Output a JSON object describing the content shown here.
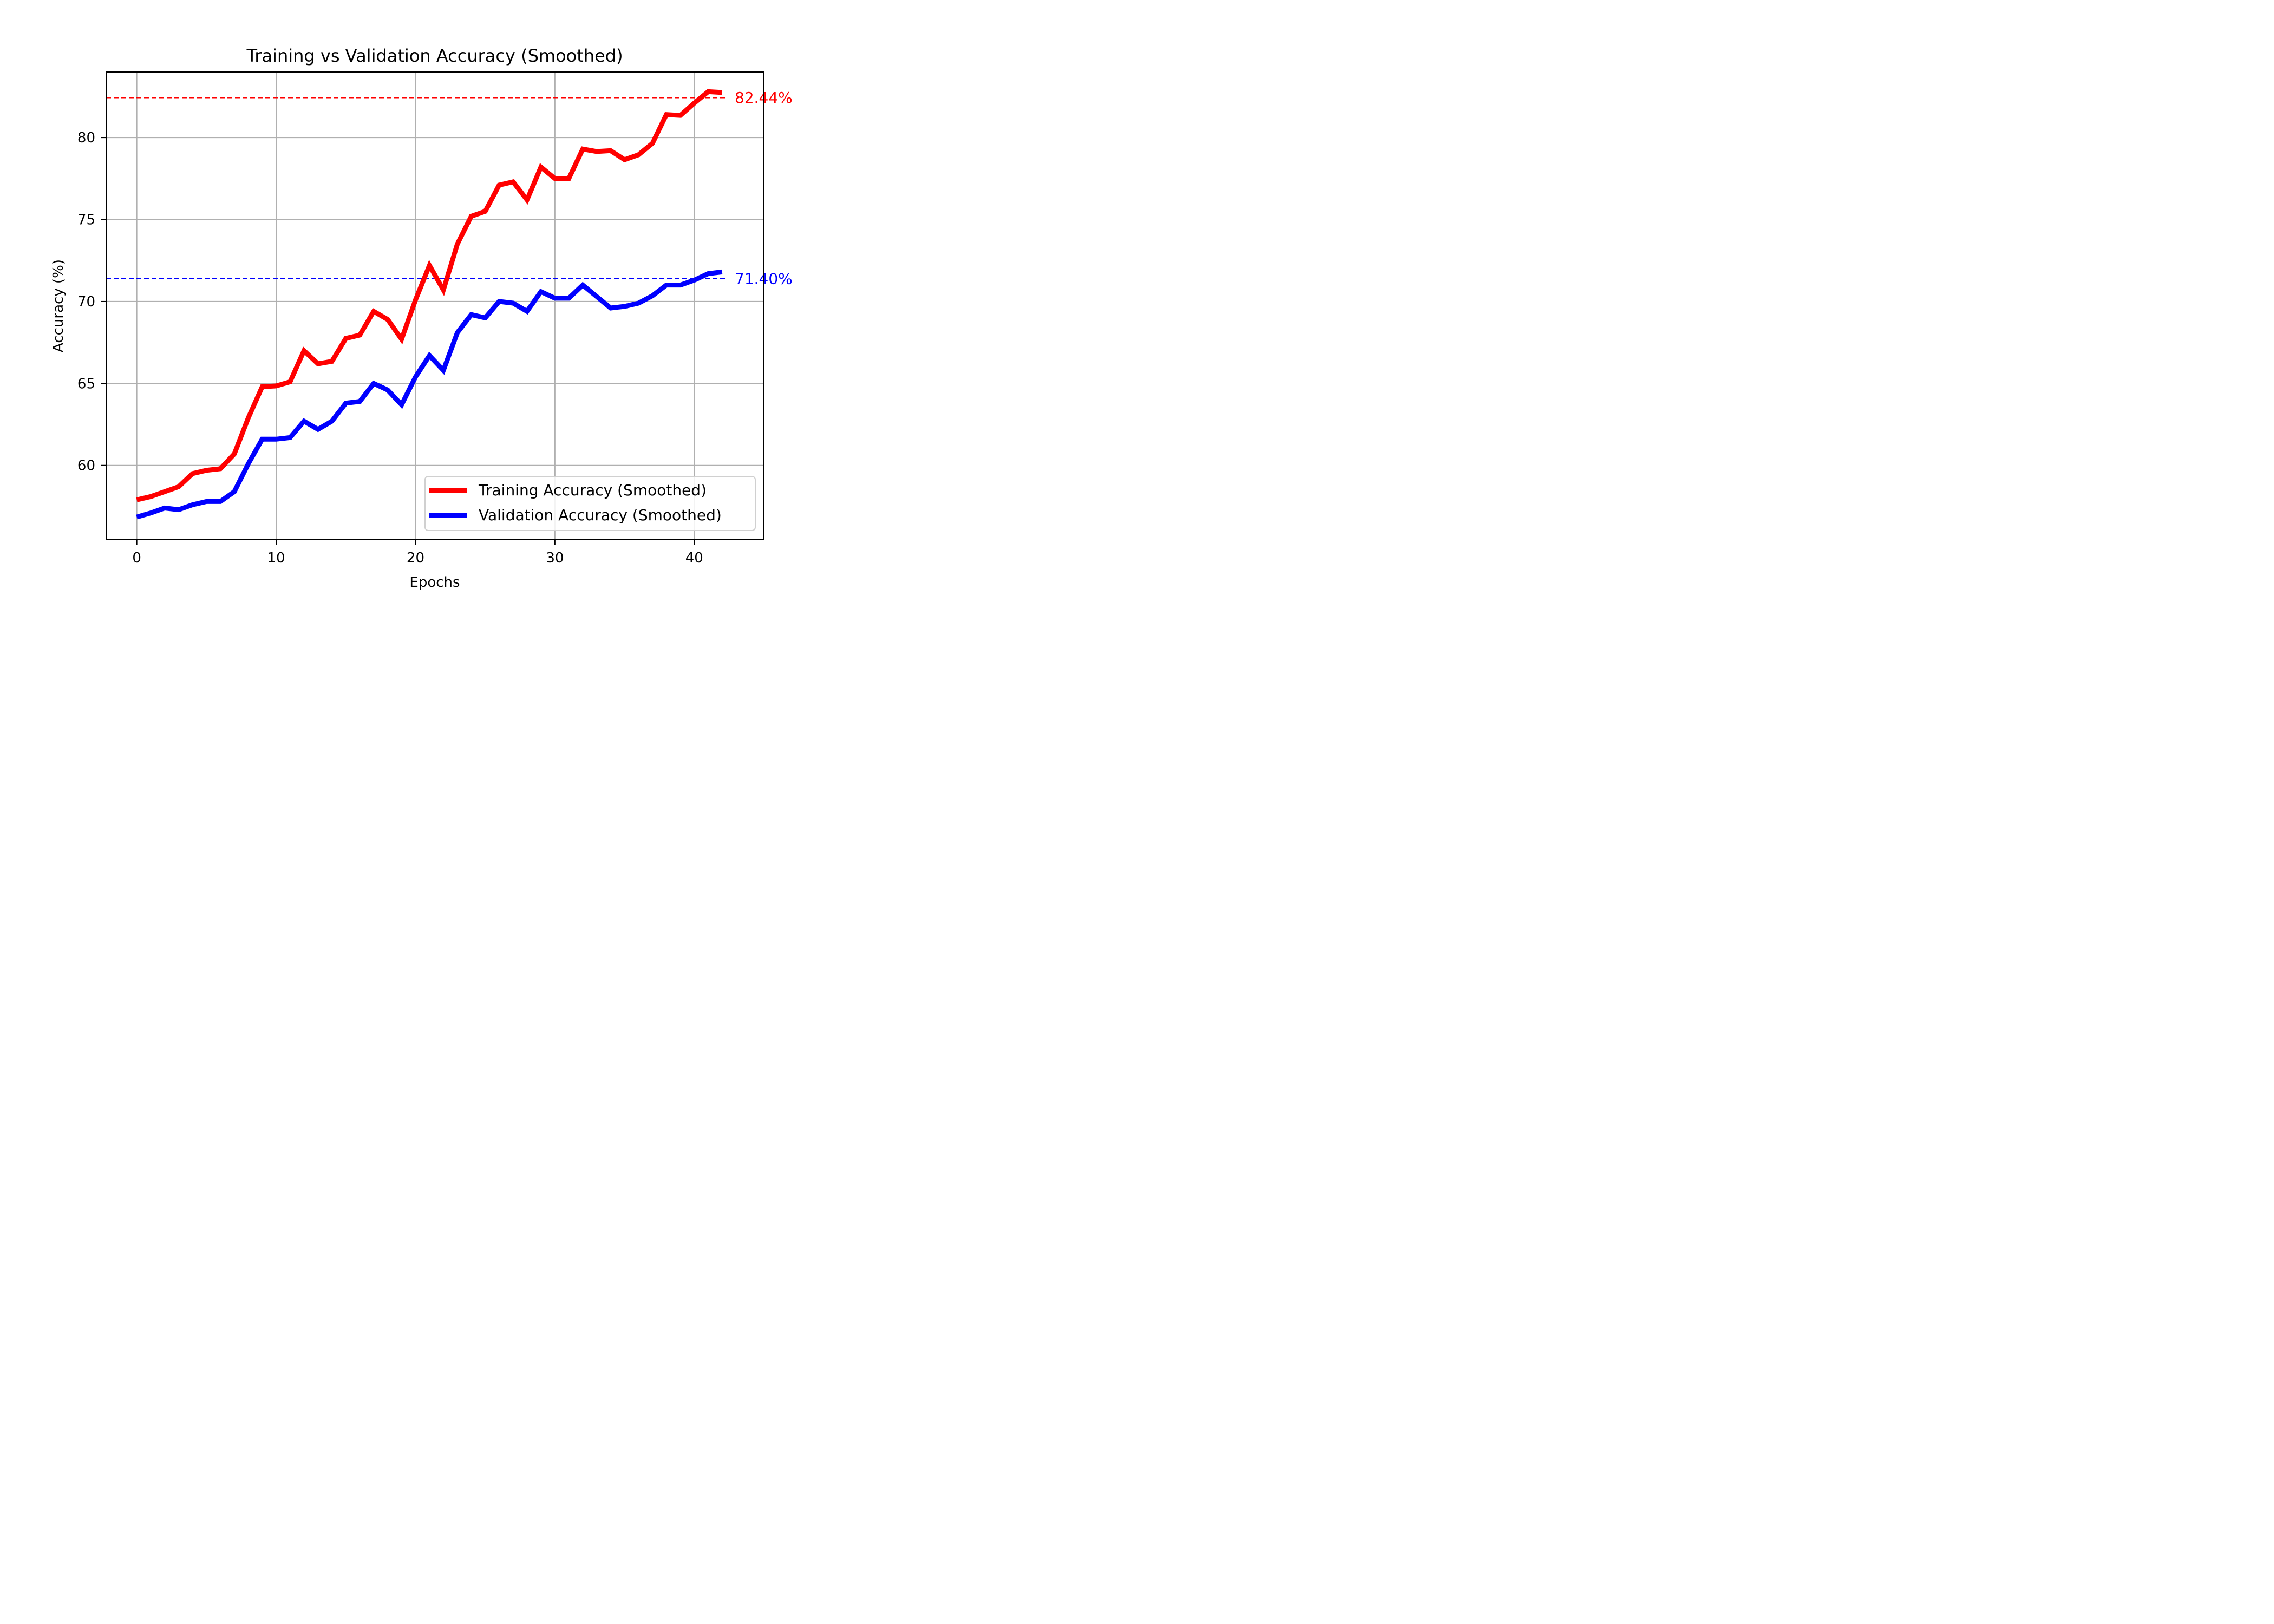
{
  "chart_data": {
    "type": "line",
    "title": "Training vs Validation Accuracy (Smoothed)",
    "xlabel": "Epochs",
    "ylabel": "Accuracy (%)",
    "xlim": [
      -2.2,
      45.0
    ],
    "ylim": [
      55.5,
      84.0
    ],
    "xticks": [
      0,
      10,
      20,
      30,
      40
    ],
    "yticks": [
      60,
      65,
      70,
      75,
      80
    ],
    "grid": true,
    "legend_position": "lower-right",
    "x": [
      0,
      1,
      2,
      3,
      4,
      5,
      6,
      7,
      8,
      9,
      10,
      11,
      12,
      13,
      14,
      15,
      16,
      17,
      18,
      19,
      20,
      21,
      22,
      23,
      24,
      25,
      26,
      27,
      28,
      29,
      30,
      31,
      32,
      33,
      34,
      35,
      36,
      37,
      38,
      39,
      40,
      41,
      42
    ],
    "series": [
      {
        "name": "Training Accuracy (Smoothed)",
        "color": "#ff0000",
        "values": [
          57.9,
          58.1,
          58.4,
          58.7,
          59.5,
          59.7,
          59.8,
          60.7,
          62.9,
          64.8,
          64.85,
          65.1,
          67.0,
          66.2,
          66.35,
          67.75,
          67.95,
          69.4,
          68.9,
          67.7,
          70.1,
          72.2,
          70.7,
          73.5,
          75.2,
          75.5,
          77.1,
          77.3,
          76.2,
          78.2,
          77.5,
          77.5,
          79.3,
          79.15,
          79.2,
          78.65,
          78.95,
          79.65,
          81.4,
          81.35,
          82.1,
          82.8,
          82.75
        ]
      },
      {
        "name": "Validation Accuracy (Smoothed)",
        "color": "#0000ff",
        "values": [
          56.85,
          57.1,
          57.4,
          57.3,
          57.6,
          57.8,
          57.8,
          58.4,
          60.1,
          61.6,
          61.6,
          61.7,
          62.7,
          62.2,
          62.7,
          63.8,
          63.9,
          65.0,
          64.6,
          63.7,
          65.4,
          66.7,
          65.8,
          68.1,
          69.2,
          69.0,
          70.0,
          69.9,
          69.4,
          70.6,
          70.2,
          70.2,
          71.0,
          70.3,
          69.6,
          69.7,
          69.9,
          70.35,
          71.0,
          71.0,
          71.3,
          71.7,
          71.8
        ]
      }
    ],
    "reference_lines": [
      {
        "value": 82.44,
        "label": "82.44%",
        "color": "#ff0000"
      },
      {
        "value": 71.4,
        "label": "71.40%",
        "color": "#0000ff"
      }
    ]
  }
}
